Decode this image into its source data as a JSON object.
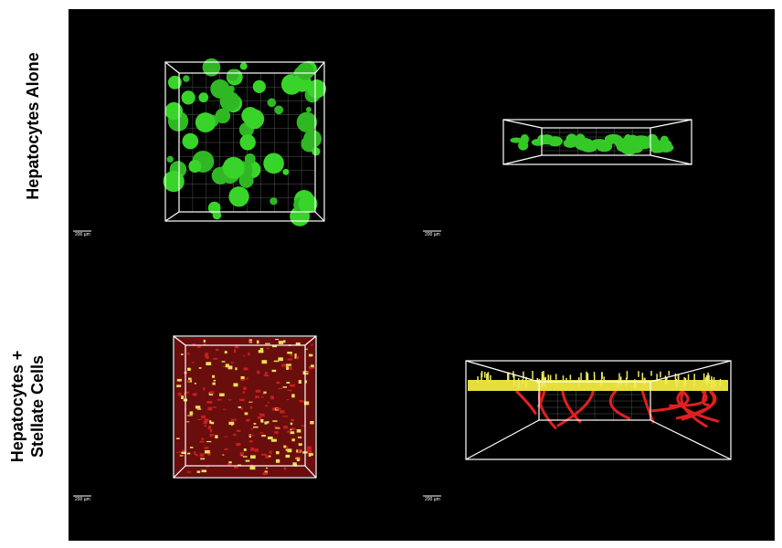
{
  "figure": {
    "rows": [
      {
        "label": [
          "Hepatocytes Alone"
        ],
        "scale_bars": [
          "200 µm",
          "200 µm"
        ]
      },
      {
        "label": [
          "Hepatocytes +",
          "Stellate Cells"
        ],
        "scale_bars": [
          "200 µm",
          "200 µm"
        ]
      }
    ]
  }
}
